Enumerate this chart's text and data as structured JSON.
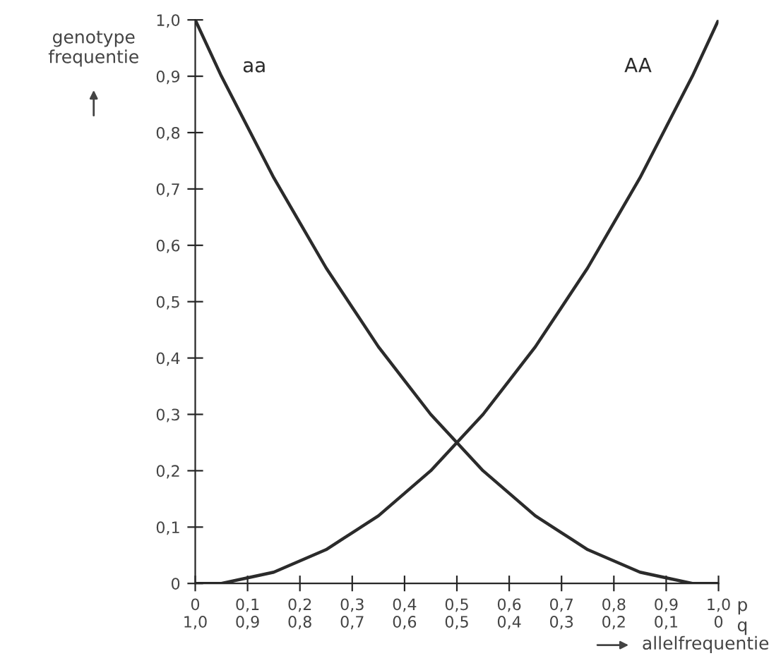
{
  "chart_data": {
    "type": "line",
    "ylabel": "genotype\nfrequentie",
    "xlabel": "allelfrequentie",
    "x": [
      0,
      0.05,
      0.1,
      0.15,
      0.2,
      0.25,
      0.3,
      0.35,
      0.4,
      0.45,
      0.5,
      0.55,
      0.6,
      0.65,
      0.7,
      0.75,
      0.8,
      0.85,
      0.9,
      0.95,
      1.0
    ],
    "series": [
      {
        "name": "aa",
        "color": "#2b2b2b",
        "values": [
          1.0,
          0.9,
          0.81,
          0.72,
          0.64,
          0.56,
          0.49,
          0.42,
          0.36,
          0.3,
          0.25,
          0.2,
          0.16,
          0.12,
          0.09,
          0.06,
          0.04,
          0.02,
          0.01,
          0.0,
          0.0
        ]
      },
      {
        "name": "AA",
        "color": "#2b2b2b",
        "values": [
          0.0,
          0.0,
          0.01,
          0.02,
          0.04,
          0.06,
          0.09,
          0.12,
          0.16,
          0.2,
          0.25,
          0.3,
          0.36,
          0.42,
          0.49,
          0.56,
          0.64,
          0.72,
          0.81,
          0.9,
          1.0
        ]
      }
    ],
    "xlim": [
      0,
      1.0
    ],
    "ylim": [
      0,
      1.0
    ],
    "xticks": [
      0,
      {
        "value": 0.1,
        "label": "0,1"
      },
      {
        "value": 0.2,
        "label": "0,2"
      },
      {
        "value": 0.3,
        "label": "0,3"
      },
      {
        "value": 0.4,
        "label": "0,4"
      },
      {
        "value": 0.5,
        "label": "0,5"
      },
      {
        "value": 0.6,
        "label": "0,6"
      },
      {
        "value": 0.7,
        "label": "0,7"
      },
      {
        "value": 0.8,
        "label": "0,8"
      },
      {
        "value": 0.9,
        "label": "0,9"
      },
      {
        "value": 1.0,
        "label": "1,0"
      }
    ],
    "x2lim": [
      1.0,
      0
    ],
    "x2ticks": [
      {
        "value": 1.0,
        "label": "1,0"
      },
      {
        "value": 0.9,
        "label": "0,9"
      },
      {
        "value": 0.8,
        "label": "0,8"
      },
      {
        "value": 0.7,
        "label": "0,7"
      },
      {
        "value": 0.6,
        "label": "0,6"
      },
      {
        "value": 0.5,
        "label": "0,5"
      },
      {
        "value": 0.4,
        "label": "0,4"
      },
      {
        "value": 0.3,
        "label": "0,3"
      },
      {
        "value": 0.2,
        "label": "0,2"
      },
      {
        "value": 0.1,
        "label": "0,1"
      },
      0
    ],
    "yticks": [
      0,
      {
        "value": 0.1,
        "label": "0,1"
      },
      {
        "value": 0.2,
        "label": "0,2"
      },
      {
        "value": 0.3,
        "label": "0,3"
      },
      {
        "value": 0.4,
        "label": "0,4"
      },
      {
        "value": 0.5,
        "label": "0,5"
      },
      {
        "value": 0.6,
        "label": "0,6"
      },
      {
        "value": 0.7,
        "label": "0,7"
      },
      {
        "value": 0.8,
        "label": "0,8"
      },
      {
        "value": 0.9,
        "label": "0,9"
      },
      {
        "value": 1.0,
        "label": "1,0"
      }
    ],
    "annotations": [
      "p",
      "q"
    ],
    "grid": false,
    "legend": false,
    "marker": "none",
    "line_style": "solid"
  }
}
